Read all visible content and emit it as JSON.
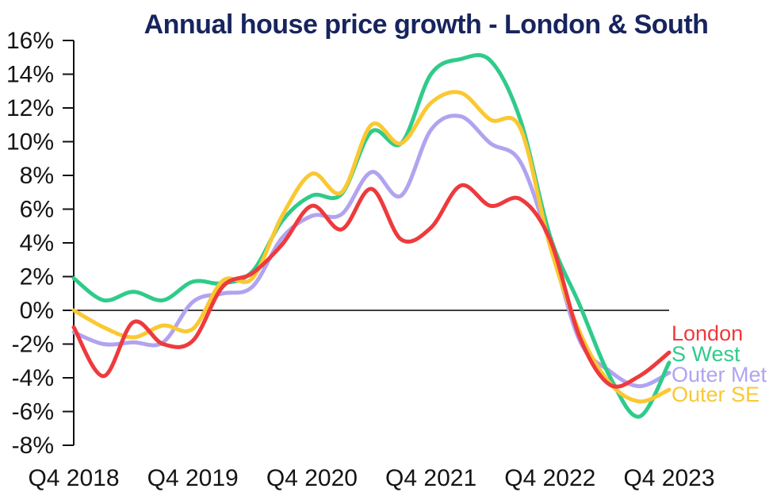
{
  "title": {
    "text": "Annual house price growth - London & South",
    "color": "#17245e"
  },
  "chart_data": {
    "type": "line",
    "x": [
      "Q4 2018",
      "Q1 2019",
      "Q2 2019",
      "Q3 2019",
      "Q4 2019",
      "Q1 2020",
      "Q2 2020",
      "Q3 2020",
      "Q4 2020",
      "Q1 2021",
      "Q2 2021",
      "Q3 2021",
      "Q4 2021",
      "Q1 2022",
      "Q2 2022",
      "Q3 2022",
      "Q4 2022",
      "Q1 2023",
      "Q2 2023",
      "Q3 2023",
      "Q4 2023"
    ],
    "series": [
      {
        "name": "Outer Met",
        "color": "#b2a3f0",
        "values": [
          -1.3,
          -2.0,
          -1.9,
          -1.9,
          0.5,
          1.0,
          1.4,
          4.3,
          5.6,
          5.7,
          8.2,
          6.8,
          10.7,
          11.5,
          9.9,
          8.8,
          3.9,
          -1.8,
          -3.6,
          -4.5,
          -3.7
        ]
      },
      {
        "name": "S West",
        "color": "#2fcb8b",
        "values": [
          1.9,
          0.6,
          1.1,
          0.6,
          1.7,
          1.6,
          2.3,
          5.3,
          6.8,
          6.9,
          10.6,
          9.9,
          14.0,
          14.9,
          14.8,
          11.3,
          4.4,
          0.3,
          -3.9,
          -6.3,
          -3.1
        ]
      },
      {
        "name": "Outer SE",
        "color": "#fac832",
        "values": [
          0.0,
          -1.0,
          -1.6,
          -0.9,
          -1.1,
          1.75,
          1.9,
          5.6,
          8.1,
          7.0,
          11.0,
          9.9,
          12.3,
          12.9,
          11.3,
          10.8,
          3.8,
          -1.3,
          -4.3,
          -5.4,
          -4.7
        ]
      },
      {
        "name": "London",
        "color": "#ee3a3d",
        "values": [
          -1.0,
          -3.9,
          -0.7,
          -2.0,
          -1.8,
          1.4,
          2.2,
          3.9,
          6.2,
          4.8,
          7.2,
          4.2,
          4.9,
          7.4,
          6.2,
          6.6,
          4.2,
          -1.6,
          -4.4,
          -3.9,
          -2.5
        ]
      }
    ],
    "legend_order": [
      "London",
      "S West",
      "Outer Met",
      "Outer SE"
    ],
    "legend_position": "right",
    "title": "Annual house price growth - London & South",
    "xlabel": "",
    "ylabel": "",
    "ylim": [
      -8,
      16
    ],
    "y_step": 2,
    "grid": false,
    "zero_line": true,
    "y_tick_labels": [
      "16%",
      "14%",
      "12%",
      "10%",
      "8%",
      "6%",
      "4%",
      "2%",
      "0%",
      "-2%",
      "-4%",
      "-6%",
      "-8%"
    ],
    "y_tick_values": [
      16,
      14,
      12,
      10,
      8,
      6,
      4,
      2,
      0,
      -2,
      -4,
      -6,
      -8
    ],
    "x_tick_labels": [
      "Q4 2018",
      "Q4 2019",
      "Q4 2020",
      "Q4 2021",
      "Q4 2022",
      "Q4 2023"
    ],
    "x_tick_indices": [
      0,
      4,
      8,
      12,
      16,
      20
    ]
  },
  "colors": {
    "axis": "#111111",
    "background": "#ffffff"
  }
}
